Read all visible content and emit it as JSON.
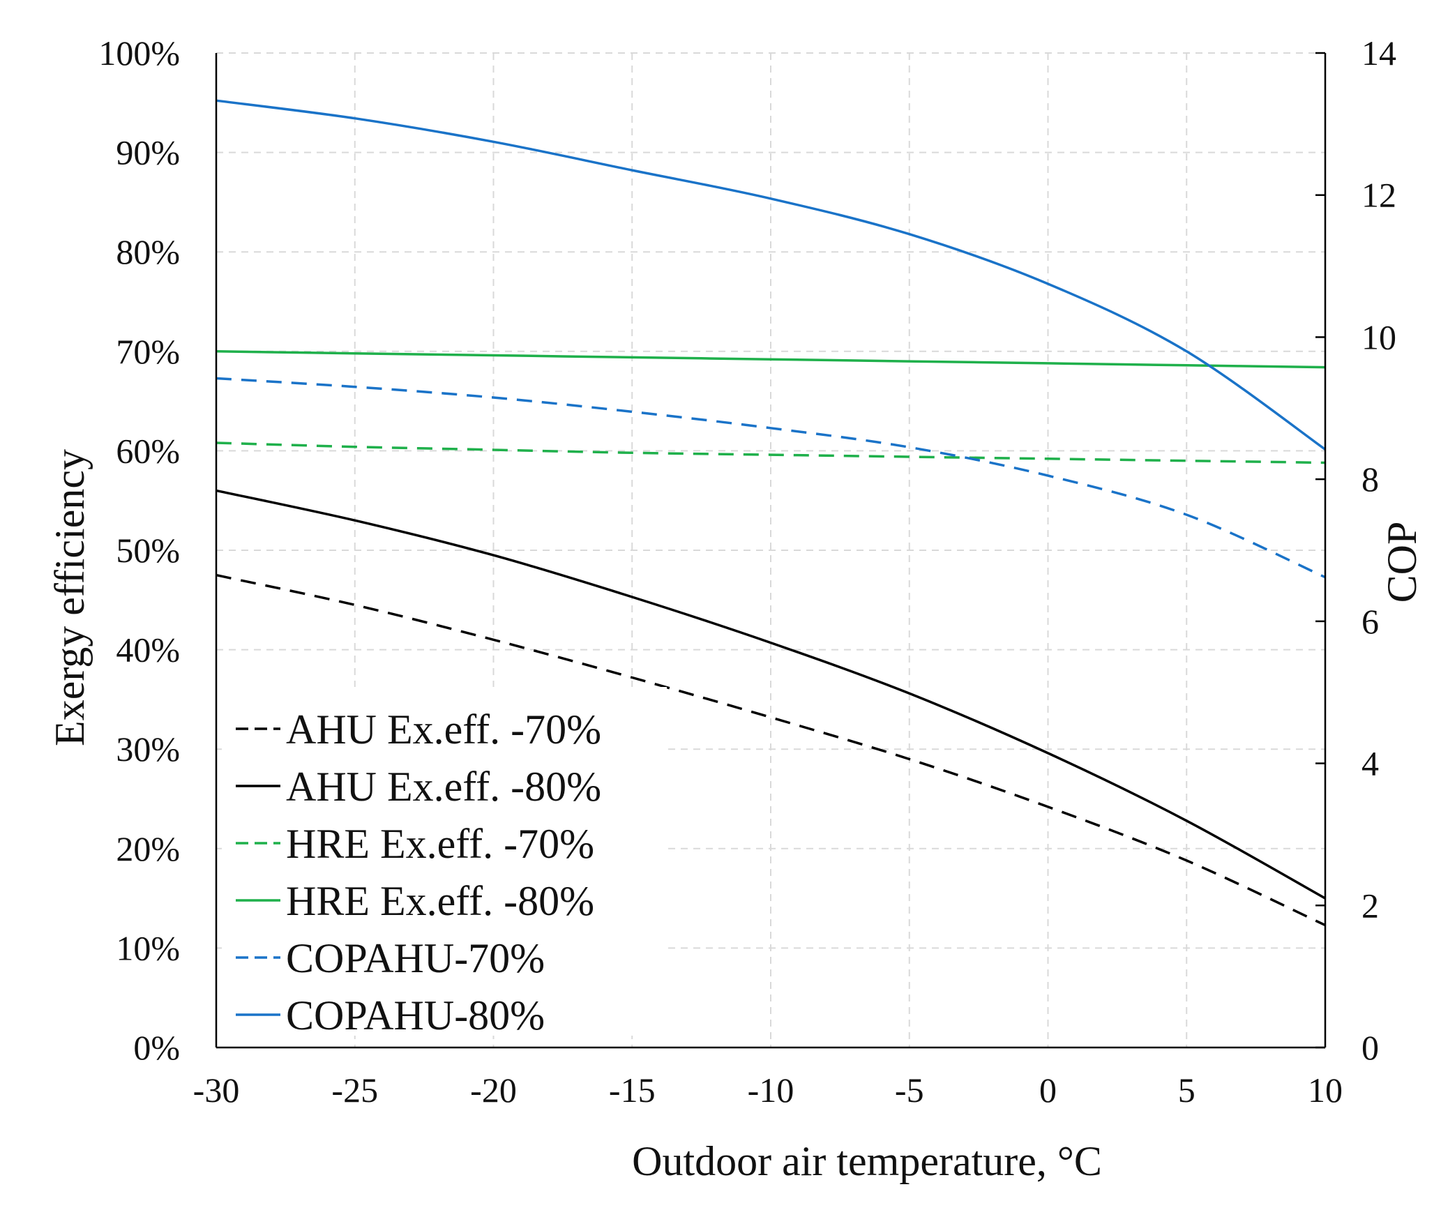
{
  "chart_data": {
    "type": "line",
    "xlabel": "Outdoor air temperature, °C",
    "ylabel_left": "Exergy efficiency",
    "ylabel_right": "COP",
    "xlim": [
      -30,
      10
    ],
    "ylim_left": [
      0,
      100
    ],
    "ylim_right": [
      0,
      14
    ],
    "x_ticks": [
      "-30",
      "-25",
      "-20",
      "-15",
      "-10",
      "-5",
      "0",
      "5",
      "10"
    ],
    "y_left_ticks": [
      "0%",
      "10%",
      "20%",
      "30%",
      "40%",
      "50%",
      "60%",
      "70%",
      "80%",
      "90%",
      "100%"
    ],
    "y_right_ticks": [
      "0",
      "2",
      "4",
      "6",
      "8",
      "10",
      "12",
      "14"
    ],
    "grid": true,
    "legend_position": "bottom-left",
    "x": [
      -30,
      -25,
      -20,
      -15,
      -10,
      -5,
      0,
      5,
      10
    ],
    "series": [
      {
        "name": "AHU Ex.eff. -70%",
        "axis": "left",
        "color": "#000000",
        "dash": true,
        "values": [
          47.5,
          44.5,
          41.0,
          37.2,
          33.2,
          29.0,
          24.2,
          18.8,
          12.3
        ]
      },
      {
        "name": "AHU Ex.eff. -80%",
        "axis": "left",
        "color": "#000000",
        "dash": false,
        "values": [
          56.0,
          53.0,
          49.5,
          45.3,
          40.7,
          35.6,
          29.6,
          22.8,
          15.0
        ]
      },
      {
        "name": "HRE Ex.eff. -70%",
        "axis": "left",
        "color": "#1fb04b",
        "dash": true,
        "values": [
          60.8,
          60.4,
          60.1,
          59.8,
          59.6,
          59.4,
          59.2,
          59.0,
          58.8
        ]
      },
      {
        "name": "HRE Ex.eff. -80%",
        "axis": "left",
        "color": "#1fb04b",
        "dash": false,
        "values": [
          70.0,
          69.8,
          69.6,
          69.4,
          69.2,
          69.0,
          68.8,
          68.6,
          68.4
        ]
      },
      {
        "name": "COPAHU-70%",
        "axis": "right",
        "color": "#1a73c8",
        "dash": true,
        "values": [
          9.42,
          9.3,
          9.15,
          8.95,
          8.72,
          8.45,
          8.05,
          7.5,
          6.62
        ]
      },
      {
        "name": "COPAHU-80%",
        "axis": "right",
        "color": "#1a73c8",
        "dash": false,
        "values": [
          13.33,
          13.08,
          12.75,
          12.35,
          11.95,
          11.45,
          10.75,
          9.8,
          8.42
        ]
      }
    ]
  }
}
